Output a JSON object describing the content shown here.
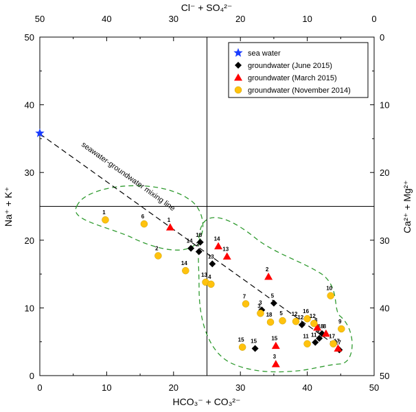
{
  "chart_data": {
    "type": "scatter",
    "axes": {
      "bottom": {
        "label": "HCO₃⁻ + CO₃²⁻",
        "range": [
          0,
          50
        ],
        "ticks": [
          "0",
          "10",
          "20",
          "30",
          "40",
          "50"
        ]
      },
      "left": {
        "label": "Na⁺ + K⁺",
        "range": [
          0,
          50
        ],
        "ticks": [
          "0",
          "10",
          "20",
          "30",
          "40",
          "50"
        ]
      },
      "top": {
        "label": "Cl⁻ + SO₄²⁻",
        "range": [
          50,
          0
        ],
        "ticks": [
          "50",
          "40",
          "30",
          "20",
          "10",
          "0"
        ]
      },
      "right": {
        "label": "Ca²⁺ + Mg²⁺",
        "range": [
          50,
          0
        ],
        "ticks": [
          "0",
          "10",
          "20",
          "30",
          "40",
          "50"
        ]
      }
    },
    "grid": "center cross lines at x=25 and y=25",
    "legend": {
      "placement": "top-right"
    },
    "annotation": "seawater-groundwater mixing line",
    "series": [
      {
        "name": "sea water",
        "marker": "star",
        "color": "#1a3cff",
        "points": [
          {
            "x": 0,
            "y": 35.8,
            "label": ""
          }
        ]
      },
      {
        "name": "groundwater (June 2015)",
        "marker": "diamond",
        "color": "#000000",
        "points": [
          {
            "x": 22.6,
            "y": 18.8,
            "label": "14"
          },
          {
            "x": 24.0,
            "y": 19.7,
            "label": "18"
          },
          {
            "x": 23.8,
            "y": 18.3,
            "label": "2"
          },
          {
            "x": 25.8,
            "y": 16.5,
            "label": "13"
          },
          {
            "x": 35.0,
            "y": 10.7,
            "label": "5"
          },
          {
            "x": 33.2,
            "y": 9.7,
            "label": "3"
          },
          {
            "x": 39.2,
            "y": 7.5,
            "label": "12"
          },
          {
            "x": 42.2,
            "y": 6.2,
            "label": "18"
          },
          {
            "x": 41.8,
            "y": 5.5,
            "label": "9"
          },
          {
            "x": 41.2,
            "y": 4.9,
            "label": "11"
          },
          {
            "x": 32.2,
            "y": 4.0,
            "label": "15"
          },
          {
            "x": 44.8,
            "y": 3.8,
            "label": "17"
          }
        ]
      },
      {
        "name": "groundwater (March 2015)",
        "marker": "triangle",
        "color": "#ff0000",
        "points": [
          {
            "x": 19.5,
            "y": 21.9,
            "label": "1"
          },
          {
            "x": 26.7,
            "y": 19.1,
            "label": "14"
          },
          {
            "x": 28.0,
            "y": 17.6,
            "label": "13"
          },
          {
            "x": 34.2,
            "y": 14.6,
            "label": "2"
          },
          {
            "x": 41.5,
            "y": 7.1,
            "label": "8"
          },
          {
            "x": 42.8,
            "y": 6.2,
            "label": "8"
          },
          {
            "x": 35.3,
            "y": 4.4,
            "label": "15"
          },
          {
            "x": 35.3,
            "y": 1.7,
            "label": "3"
          },
          {
            "x": 44.6,
            "y": 4.0,
            "label": "17"
          }
        ]
      },
      {
        "name": "groundwater (November 2014)",
        "marker": "circle",
        "color": "#ffc20e",
        "points": [
          {
            "x": 9.8,
            "y": 23.0,
            "label": "1"
          },
          {
            "x": 15.6,
            "y": 22.4,
            "label": "6"
          },
          {
            "x": 17.7,
            "y": 17.7,
            "label": "2"
          },
          {
            "x": 21.8,
            "y": 15.5,
            "label": "14"
          },
          {
            "x": 24.8,
            "y": 13.8,
            "label": "13"
          },
          {
            "x": 25.6,
            "y": 13.5,
            "label": "4"
          },
          {
            "x": 30.8,
            "y": 10.6,
            "label": "7"
          },
          {
            "x": 33.0,
            "y": 9.2,
            "label": "3"
          },
          {
            "x": 34.5,
            "y": 7.9,
            "label": "18"
          },
          {
            "x": 36.3,
            "y": 8.1,
            "label": "5"
          },
          {
            "x": 38.3,
            "y": 8.0,
            "label": "12"
          },
          {
            "x": 40.0,
            "y": 8.4,
            "label": "16"
          },
          {
            "x": 41.0,
            "y": 7.7,
            "label": "12"
          },
          {
            "x": 43.5,
            "y": 11.8,
            "label": "10"
          },
          {
            "x": 45.1,
            "y": 6.9,
            "label": "9"
          },
          {
            "x": 40.0,
            "y": 4.7,
            "label": "11"
          },
          {
            "x": 30.3,
            "y": 4.2,
            "label": "15"
          },
          {
            "x": 43.9,
            "y": 4.7,
            "label": "17"
          }
        ]
      }
    ]
  }
}
